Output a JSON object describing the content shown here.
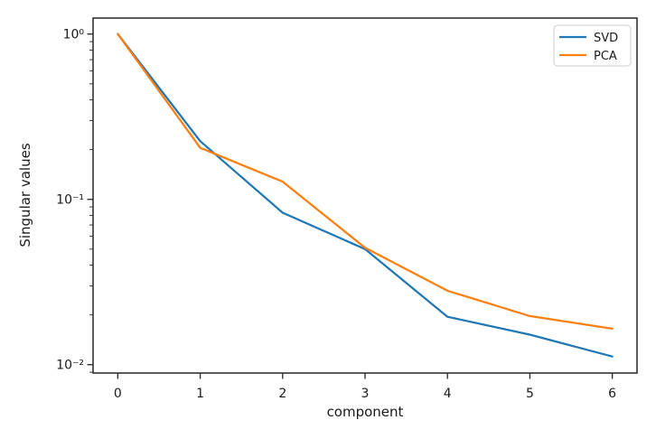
{
  "chart_data": {
    "type": "line",
    "title": "",
    "xlabel": "component",
    "ylabel": "Singular values",
    "x": [
      0,
      1,
      2,
      3,
      4,
      5,
      6
    ],
    "series": [
      {
        "name": "SVD",
        "color": "#1f77b4",
        "values": [
          1.0,
          0.225,
          0.083,
          0.05,
          0.0195,
          0.0152,
          0.0112
        ]
      },
      {
        "name": "PCA",
        "color": "#ff7f0e",
        "values": [
          1.0,
          0.205,
          0.128,
          0.051,
          0.028,
          0.0197,
          0.0165
        ]
      }
    ],
    "xscale": "linear",
    "yscale": "log",
    "xlim": [
      -0.3,
      6.3
    ],
    "ylim": [
      0.0089,
      1.25
    ],
    "xticks": [
      0,
      1,
      2,
      3,
      4,
      5,
      6
    ],
    "yticks": [
      {
        "value": 1,
        "label": "10⁰"
      },
      {
        "value": 0.1,
        "label": "10⁻¹"
      },
      {
        "value": 0.01,
        "label": "10⁻²"
      }
    ],
    "grid": false,
    "legend": {
      "position": "upper right",
      "entries": [
        "SVD",
        "PCA"
      ]
    }
  },
  "style": {
    "axis_color": "#262626",
    "text_color": "#1a1a1a",
    "legend_border_color": "#cccccc",
    "legend_background": "#ffffff",
    "line_width": 2.25
  }
}
